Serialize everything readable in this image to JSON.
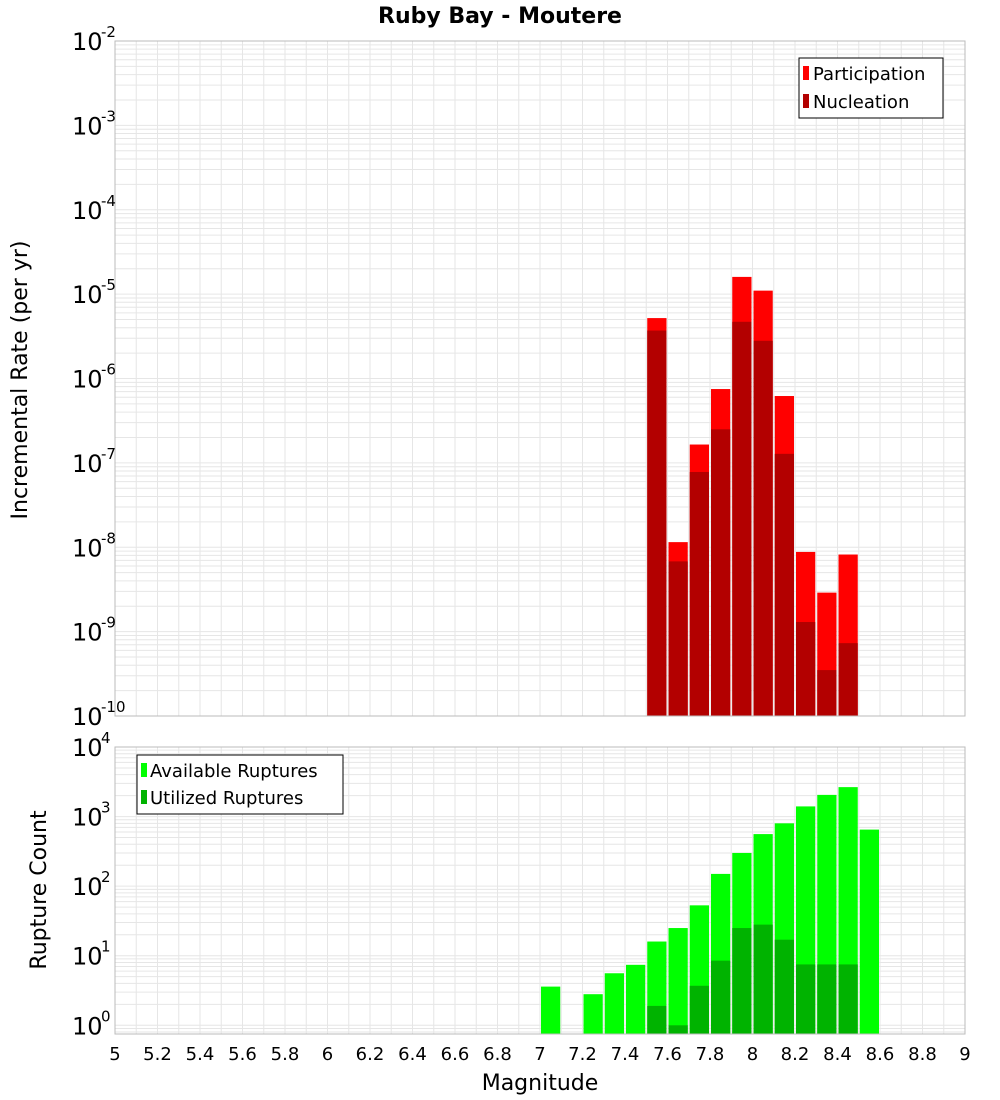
{
  "title": "Ruby Bay - Moutere",
  "colors": {
    "participation": "#ff0000",
    "nucleation": "#b30000",
    "available": "#00ff00",
    "utilized": "#00b300",
    "grid": "#e6e6e6",
    "frame": "#bbbbbb"
  },
  "chart_data": [
    {
      "type": "bar",
      "ylabel": "Incremental Rate (per yr)",
      "xlabel": "",
      "xlim": [
        5,
        9
      ],
      "ylim": [
        1e-10,
        0.01
      ],
      "yscale": "log",
      "ytick_exponents": [
        -10,
        -9,
        -8,
        -7,
        -6,
        -5,
        -4,
        -3,
        -2
      ],
      "grid": true,
      "legend_position": "top-right",
      "x": [
        7.55,
        7.65,
        7.75,
        7.85,
        7.95,
        8.05,
        8.15,
        8.25,
        8.35,
        8.45
      ],
      "series": [
        {
          "name": "Participation",
          "color": "#ff0000",
          "values": [
            5.2e-06,
            1.15e-08,
            1.65e-07,
            7.5e-07,
            1.6e-05,
            1.1e-05,
            6.2e-07,
            8.8e-09,
            2.9e-09,
            8.2e-09
          ]
        },
        {
          "name": "Nucleation",
          "color": "#b30000",
          "values": [
            3.7e-06,
            6.8e-09,
            7.8e-08,
            2.5e-07,
            4.7e-06,
            2.8e-06,
            1.28e-07,
            1.3e-09,
            3.5e-10,
            7.3e-10
          ]
        }
      ]
    },
    {
      "type": "bar",
      "ylabel": "Rupture Count",
      "xlabel": "Magnitude",
      "xlim": [
        5,
        9
      ],
      "ylim": [
        0.75,
        10000
      ],
      "yscale": "log",
      "ytick_exponents": [
        0,
        1,
        2,
        3,
        4
      ],
      "xticks": [
        "5",
        "5.2",
        "5.4",
        "5.6",
        "5.8",
        "6",
        "6.2",
        "6.4",
        "6.6",
        "6.8",
        "7",
        "7.2",
        "7.4",
        "7.6",
        "7.8",
        "8",
        "8.2",
        "8.4",
        "8.6",
        "8.8",
        "9"
      ],
      "grid": true,
      "legend_position": "top-left",
      "x": [
        7.05,
        7.15,
        7.25,
        7.35,
        7.45,
        7.55,
        7.65,
        7.75,
        7.85,
        7.95,
        8.05,
        8.15,
        8.25,
        8.35,
        8.45,
        8.55
      ],
      "series": [
        {
          "name": "Available Ruptures",
          "color": "#00ff00",
          "values": [
            3.6,
            0,
            2.8,
            5.6,
            7.4,
            16,
            25,
            53,
            150,
            300,
            560,
            800,
            1400,
            2050,
            2650,
            650
          ]
        },
        {
          "name": "Utilized Ruptures",
          "color": "#00b300",
          "values": [
            0,
            0,
            0,
            0,
            0,
            1.9,
            1,
            3.7,
            8.5,
            25,
            28,
            17,
            7.5,
            7.5,
            7.5,
            0
          ]
        }
      ]
    }
  ]
}
